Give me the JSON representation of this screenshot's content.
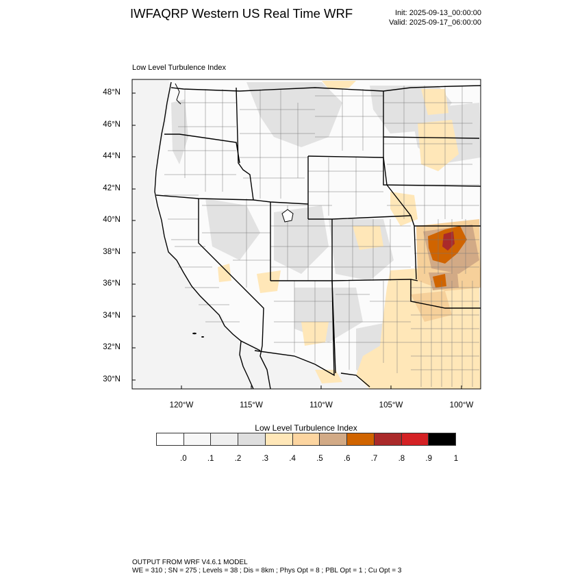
{
  "header": {
    "title": "IWFAQRP Western US Real Time WRF",
    "init": "Init: 2025-09-13_00:00:00",
    "valid": "Valid: 2025-09-17_06:00:00"
  },
  "map": {
    "field_label": "Low Level Turbulence Index",
    "lat_labels": [
      "48°N",
      "46°N",
      "44°N",
      "42°N",
      "40°N",
      "38°N",
      "36°N",
      "34°N",
      "32°N",
      "30°N"
    ],
    "lon_labels": [
      "120°W",
      "115°W",
      "110°W",
      "105°W",
      "100°W"
    ]
  },
  "colorbar": {
    "title": "Low Level Turbulence Index",
    "colors": [
      "#ffffff",
      "#f7f7f7",
      "#efefef",
      "#dedede",
      "#ffe7b8",
      "#fcd5a0",
      "#d2aa86",
      "#d06400",
      "#aa2a2a",
      "#d42124",
      "#000000"
    ],
    "tick_labels": [
      ".0",
      ".1",
      ".2",
      ".3",
      ".4",
      ".5",
      ".6",
      ".7",
      ".8",
      ".9",
      "1"
    ]
  },
  "footer": {
    "line1": "OUTPUT FROM WRF V4.6.1 MODEL",
    "line2": "WE = 310 ; SN = 275 ; Levels = 38 ; Dis = 8km ; Phys Opt = 8 ; PBL Opt = 1 ; Cu Opt = 3"
  }
}
